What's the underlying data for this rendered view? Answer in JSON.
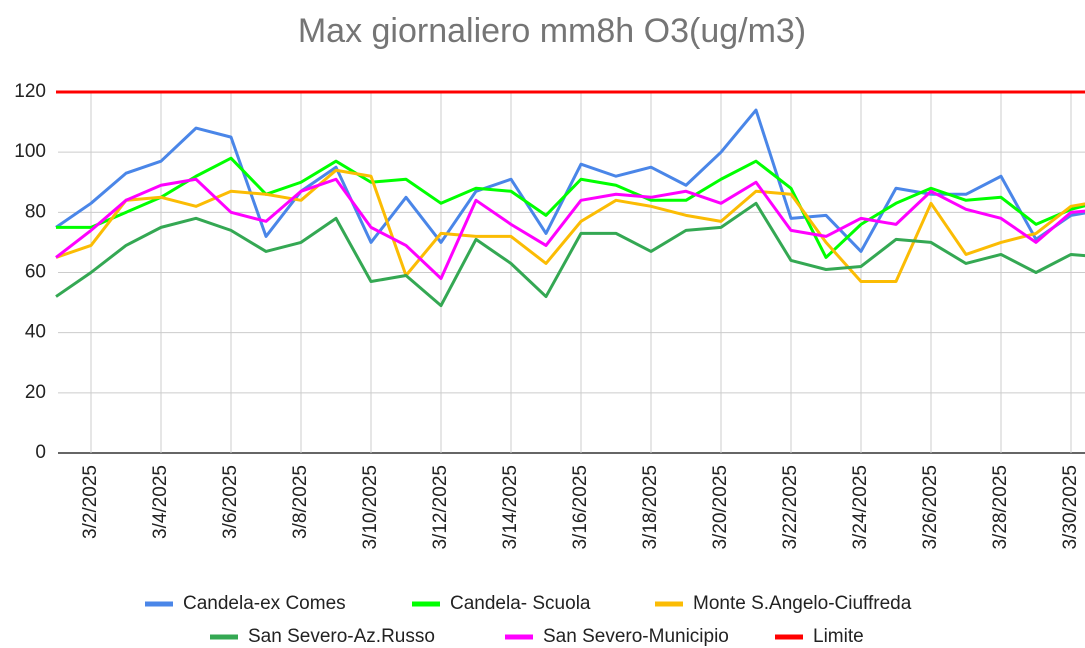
{
  "chart_data": {
    "type": "line",
    "title": "Max giornaliero mm8h O3(ug/m3)",
    "categories": [
      null,
      "3/2/2025",
      null,
      "3/4/2025",
      null,
      "3/6/2025",
      null,
      "3/8/2025",
      null,
      "3/10/2025",
      null,
      "3/12/2025",
      null,
      "3/14/2025",
      null,
      "3/16/2025",
      null,
      "3/18/2025",
      null,
      "3/20/2025",
      null,
      "3/22/2025",
      null,
      "3/24/2025",
      null,
      "3/26/2025",
      null,
      "3/28/2025",
      null,
      "3/30/2025",
      null
    ],
    "series": [
      {
        "name": "Candela-ex Comes",
        "color": "#4a86e8",
        "values": [
          75,
          83,
          93,
          97,
          108,
          105,
          72,
          87,
          95,
          70,
          85,
          70,
          87,
          91,
          73,
          96,
          92,
          95,
          89,
          100,
          114,
          78,
          79,
          67,
          88,
          86,
          86,
          92,
          71,
          79,
          81
        ]
      },
      {
        "name": "Candela- Scuola",
        "color": "#00ff00",
        "values": [
          75,
          75,
          80,
          85,
          92,
          98,
          86,
          90,
          97,
          90,
          91,
          83,
          88,
          87,
          79,
          91,
          89,
          84,
          84,
          91,
          97,
          88,
          65,
          76,
          83,
          88,
          84,
          85,
          76,
          81,
          84
        ]
      },
      {
        "name": "Monte S.Angelo-Ciuffreda",
        "color": "#fbbc04",
        "values": [
          65,
          69,
          84,
          85,
          82,
          87,
          86,
          84,
          94,
          92,
          59,
          73,
          72,
          72,
          63,
          77,
          84,
          82,
          79,
          77,
          87,
          86,
          70,
          57,
          57,
          83,
          66,
          70,
          73,
          82,
          84
        ]
      },
      {
        "name": "San Severo-Az.Russo",
        "color": "#34a853",
        "values": [
          52,
          60,
          69,
          75,
          78,
          74,
          67,
          70,
          78,
          57,
          59,
          49,
          71,
          63,
          52,
          73,
          73,
          67,
          74,
          75,
          83,
          64,
          61,
          62,
          71,
          70,
          63,
          66,
          60,
          66,
          65
        ]
      },
      {
        "name": "San Severo-Municipio",
        "color": "#ff00ff",
        "values": [
          65,
          74,
          84,
          89,
          91,
          80,
          77,
          87,
          91,
          75,
          69,
          58,
          84,
          76,
          69,
          84,
          86,
          85,
          87,
          83,
          90,
          74,
          72,
          78,
          76,
          87,
          81,
          78,
          70,
          80,
          81
        ]
      },
      {
        "name": "Limite",
        "color": "#ff0000",
        "values": [
          120,
          120,
          120,
          120,
          120,
          120,
          120,
          120,
          120,
          120,
          120,
          120,
          120,
          120,
          120,
          120,
          120,
          120,
          120,
          120,
          120,
          120,
          120,
          120,
          120,
          120,
          120,
          120,
          120,
          120,
          120
        ]
      }
    ],
    "ylim": [
      0,
      120
    ],
    "yticks": [
      0,
      20,
      40,
      60,
      80,
      100,
      120
    ],
    "grid": true,
    "legend": "bottom"
  }
}
